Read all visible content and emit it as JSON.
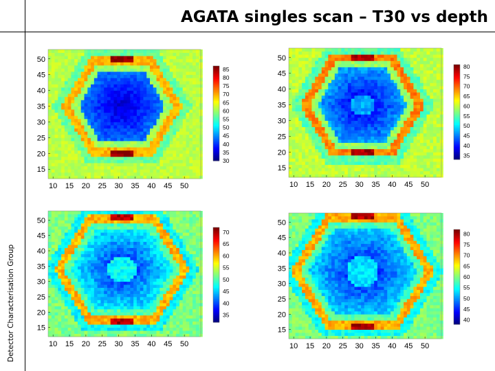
{
  "page": {
    "title": "AGATA singles scan – T30 vs depth",
    "side_label": "Detector Characterisation Group"
  },
  "chart_data": [
    {
      "type": "heatmap",
      "x_ticks": [
        10,
        15,
        20,
        25,
        30,
        35,
        40,
        45,
        50
      ],
      "y_ticks": [
        15,
        20,
        25,
        30,
        35,
        40,
        45,
        50
      ],
      "xlim": [
        8.5,
        55
      ],
      "ylim": [
        12,
        53
      ],
      "colorbar": {
        "ticks": [
          30,
          35,
          40,
          45,
          50,
          55,
          60,
          65,
          70,
          75,
          80,
          85
        ],
        "range": [
          30,
          87
        ]
      },
      "pattern": {
        "inner_radius": 0,
        "hex_radius": 14.5,
        "center": [
          31,
          35
        ],
        "bg": 62,
        "core": 34,
        "ring": 70,
        "tip": 86
      }
    },
    {
      "type": "heatmap",
      "x_ticks": [
        10,
        15,
        20,
        25,
        30,
        35,
        40,
        45,
        50
      ],
      "y_ticks": [
        15,
        20,
        25,
        30,
        35,
        40,
        45,
        50
      ],
      "xlim": [
        8.5,
        55
      ],
      "ylim": [
        12,
        53
      ],
      "colorbar": {
        "ticks": [
          35,
          40,
          45,
          50,
          55,
          60,
          65,
          70,
          75,
          80
        ],
        "range": [
          33,
          81
        ]
      },
      "pattern": {
        "inner_radius": 3.5,
        "hex_radius": 15,
        "center": [
          31,
          35
        ],
        "bg": 60,
        "core": 37,
        "ring": 69,
        "tip": 79
      }
    },
    {
      "type": "heatmap",
      "x_ticks": [
        10,
        15,
        20,
        25,
        30,
        35,
        40,
        45,
        50
      ],
      "y_ticks": [
        15,
        20,
        25,
        30,
        35,
        40,
        45,
        50
      ],
      "xlim": [
        8.5,
        55
      ],
      "ylim": [
        12,
        53
      ],
      "colorbar": {
        "ticks": [
          35,
          40,
          45,
          50,
          55,
          60,
          65,
          70
        ],
        "range": [
          32,
          72
        ]
      },
      "pattern": {
        "inner_radius": 4.5,
        "hex_radius": 16.5,
        "center": [
          31,
          34
        ],
        "bg": 52,
        "core": 37,
        "ring": 60,
        "tip": 70
      }
    },
    {
      "type": "heatmap",
      "x_ticks": [
        10,
        15,
        20,
        25,
        30,
        35,
        40,
        45,
        50
      ],
      "y_ticks": [
        15,
        20,
        25,
        30,
        35,
        40,
        45,
        50
      ],
      "xlim": [
        8.5,
        55
      ],
      "ylim": [
        12,
        53
      ],
      "colorbar": {
        "ticks": [
          40,
          45,
          50,
          55,
          60,
          65,
          70,
          75,
          80
        ],
        "range": [
          38,
          82
        ]
      },
      "pattern": {
        "inner_radius": 5,
        "hex_radius": 17.5,
        "center": [
          31,
          34
        ],
        "bg": 60,
        "core": 43,
        "ring": 69,
        "tip": 80
      }
    }
  ]
}
